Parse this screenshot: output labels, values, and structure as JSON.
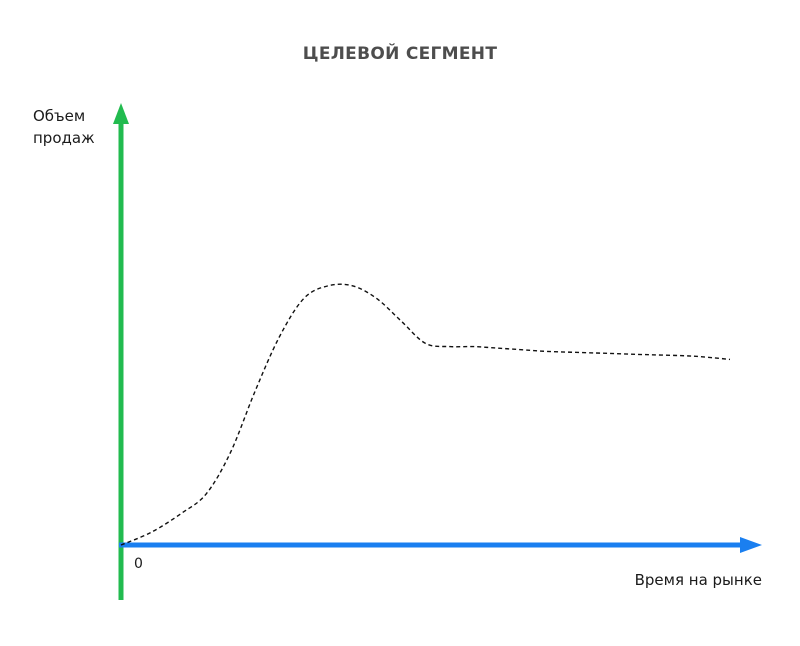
{
  "chart_data": {
    "type": "line",
    "title": "ЦЕЛЕВОЙ СЕГМЕНТ",
    "ylabel_lines": [
      "Объем",
      "продаж"
    ],
    "xlabel": "Время на рынке",
    "origin_label": "0",
    "axis_ticks": false,
    "grid": false,
    "legend": "none",
    "colors": {
      "y_axis": "#22bb4f",
      "x_axis": "#1a7ff0",
      "curve": "#111111",
      "title": "#4d4d4d"
    },
    "curve_style": "dashed",
    "xlim": [
      0,
      100
    ],
    "ylim": [
      0,
      100
    ],
    "series": [
      {
        "x": [
          0,
          5,
          10,
          14,
          18,
          22,
          26,
          30,
          34,
          38,
          42,
          46,
          50,
          54,
          58,
          62,
          66,
          70,
          78,
          86,
          94,
          100
        ],
        "y": [
          0,
          4,
          10,
          16,
          29,
          48,
          65,
          77,
          81,
          81,
          77,
          70,
          63,
          62,
          62,
          61.5,
          61,
          60.5,
          60,
          59.5,
          59,
          58
        ]
      }
    ]
  }
}
